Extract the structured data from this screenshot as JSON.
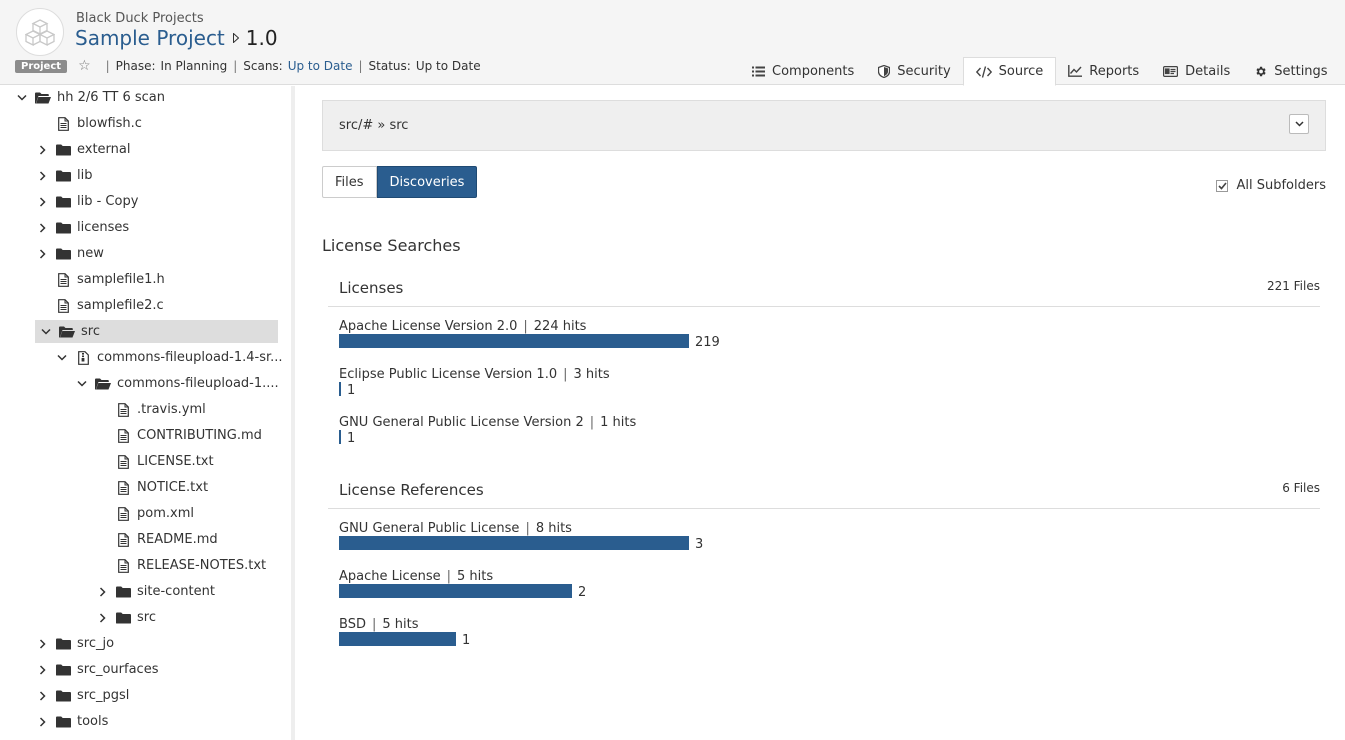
{
  "header": {
    "org": "Black Duck Projects",
    "project_name": "Sample Project",
    "version": "1.0",
    "badge": "Project",
    "phase_label": "Phase:",
    "phase_value": "In Planning",
    "scans_label": "Scans:",
    "scans_value": "Up to Date",
    "status_label": "Status:",
    "status_value": "Up to Date"
  },
  "tabs": [
    {
      "label": "Components",
      "icon": "list-icon"
    },
    {
      "label": "Security",
      "icon": "shield-icon"
    },
    {
      "label": "Source",
      "icon": "code-icon",
      "active": true
    },
    {
      "label": "Reports",
      "icon": "chart-icon"
    },
    {
      "label": "Details",
      "icon": "card-icon"
    },
    {
      "label": "Settings",
      "icon": "gear-icon"
    }
  ],
  "tree": [
    {
      "label": "hh 2/6 TT 6 scan",
      "depth": 0,
      "type": "folder-open",
      "expanded": true
    },
    {
      "label": "blowfish.c",
      "depth": 1,
      "type": "file"
    },
    {
      "label": "external",
      "depth": 1,
      "type": "folder",
      "expandable": true
    },
    {
      "label": "lib",
      "depth": 1,
      "type": "folder",
      "expandable": true
    },
    {
      "label": "lib - Copy",
      "depth": 1,
      "type": "folder",
      "expandable": true
    },
    {
      "label": "licenses",
      "depth": 1,
      "type": "folder",
      "expandable": true
    },
    {
      "label": "new",
      "depth": 1,
      "type": "folder",
      "expandable": true
    },
    {
      "label": "samplefile1.h",
      "depth": 1,
      "type": "file"
    },
    {
      "label": "samplefile2.c",
      "depth": 1,
      "type": "file"
    },
    {
      "label": "src",
      "depth": 1,
      "type": "folder-open",
      "expanded": true,
      "selected": true
    },
    {
      "label": "commons-fileupload-1.4-sr...",
      "depth": 2,
      "type": "archive",
      "expanded": true
    },
    {
      "label": "commons-fileupload-1....",
      "depth": 3,
      "type": "folder-open",
      "expanded": true
    },
    {
      "label": ".travis.yml",
      "depth": 4,
      "type": "file"
    },
    {
      "label": "CONTRIBUTING.md",
      "depth": 4,
      "type": "file"
    },
    {
      "label": "LICENSE.txt",
      "depth": 4,
      "type": "file"
    },
    {
      "label": "NOTICE.txt",
      "depth": 4,
      "type": "file"
    },
    {
      "label": "pom.xml",
      "depth": 4,
      "type": "file"
    },
    {
      "label": "README.md",
      "depth": 4,
      "type": "file"
    },
    {
      "label": "RELEASE-NOTES.txt",
      "depth": 4,
      "type": "file"
    },
    {
      "label": "site-content",
      "depth": 4,
      "type": "folder",
      "expandable": true
    },
    {
      "label": "src",
      "depth": 4,
      "type": "folder",
      "expandable": true
    },
    {
      "label": "src_jo",
      "depth": 1,
      "type": "folder",
      "expandable": true
    },
    {
      "label": "src_ourfaces",
      "depth": 1,
      "type": "folder",
      "expandable": true
    },
    {
      "label": "src_pgsl",
      "depth": 1,
      "type": "folder",
      "expandable": true
    },
    {
      "label": "tools",
      "depth": 1,
      "type": "folder",
      "expandable": true
    }
  ],
  "path": "src/# » src",
  "view_toggle": {
    "files": "Files",
    "discoveries": "Discoveries",
    "active": "discoveries"
  },
  "all_subfolders": {
    "label": "All Subfolders",
    "checked": true
  },
  "section_title": "License Searches",
  "licenses": {
    "title": "Licenses",
    "count": "221 Files",
    "max": 219,
    "items": [
      {
        "name": "Apache License Version 2.0",
        "hits": "224 hits",
        "value": 219
      },
      {
        "name": "Eclipse Public License Version 1.0",
        "hits": "3 hits",
        "value": 1
      },
      {
        "name": "GNU General Public License Version 2",
        "hits": "1 hits",
        "value": 1
      }
    ]
  },
  "references": {
    "title": "License References",
    "count": "6 Files",
    "max": 3,
    "items": [
      {
        "name": "GNU General Public License",
        "hits": "8 hits",
        "value": 3
      },
      {
        "name": "Apache License",
        "hits": "5 hits",
        "value": 2
      },
      {
        "name": "BSD",
        "hits": "5 hits",
        "value": 1
      }
    ]
  },
  "colors": {
    "accent": "#2a5d8f",
    "bar": "#2a5d8f"
  }
}
